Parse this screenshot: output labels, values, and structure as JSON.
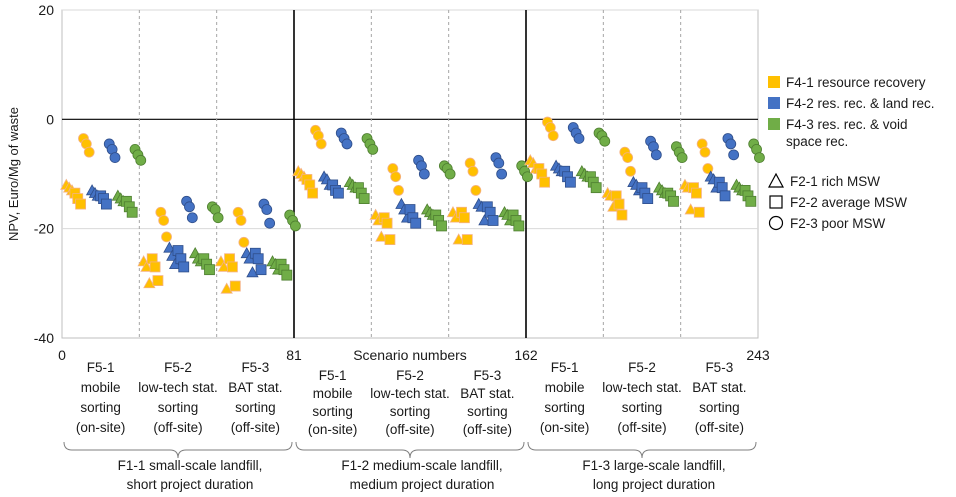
{
  "chart_data": {
    "type": "scatter",
    "ylabel": "NPV, Euro/Mg of waste",
    "xlabel": "Scenario numbers",
    "xlim": [
      0,
      243
    ],
    "ylim": [
      -40,
      20
    ],
    "y_ticks": [
      "20",
      "0",
      "-20",
      "-40"
    ],
    "x_ticks": [
      "0",
      "81",
      "162",
      "243"
    ],
    "grid": true,
    "legend_placement": "right",
    "f4_legend": [
      {
        "label": "F4-1 resource recovery",
        "color": "#FFC000"
      },
      {
        "label": "F4-2 res. rec. & land rec.",
        "color": "#4472C4"
      },
      {
        "label": "F4-3 res. rec. & void",
        "color": "#70AD47"
      },
      {
        "label": "space rec.",
        "color": "#70AD47"
      }
    ],
    "f2_legend": [
      {
        "label": "F2-1 rich MSW",
        "marker": "triangle"
      },
      {
        "label": "F2-2 average MSW",
        "marker": "square"
      },
      {
        "label": "F2-3 poor MSW",
        "marker": "circle"
      }
    ],
    "f5_groups": [
      [
        "F5-1",
        "mobile",
        "sorting",
        "(on-site)"
      ],
      [
        "F5-2",
        "low-tech stat.",
        "sorting",
        "(off-site)"
      ],
      [
        "F5-3",
        "BAT stat.",
        "sorting",
        "(off-site)"
      ]
    ],
    "f1_groups": [
      [
        "F1-1 small-scale landfill,",
        "short project duration"
      ],
      [
        "F1-2 medium-scale landfill,",
        "medium project duration"
      ],
      [
        "F1-3 large-scale landfill,",
        "long project duration"
      ]
    ],
    "series": [
      {
        "f1": 1,
        "f5": 1,
        "f4": 1,
        "f2": 1,
        "x_start": 1,
        "values": [
          -12,
          -12.5,
          -13
        ]
      },
      {
        "f1": 1,
        "f5": 1,
        "f4": 1,
        "f2": 2,
        "x_start": 4,
        "values": [
          -13.5,
          -14.5,
          -15.5
        ]
      },
      {
        "f1": 1,
        "f5": 1,
        "f4": 1,
        "f2": 3,
        "x_start": 7,
        "values": [
          -3.5,
          -4.5,
          -6
        ]
      },
      {
        "f1": 1,
        "f5": 1,
        "f4": 2,
        "f2": 1,
        "x_start": 10,
        "values": [
          -13,
          -13.5,
          -14
        ]
      },
      {
        "f1": 1,
        "f5": 1,
        "f4": 2,
        "f2": 2,
        "x_start": 13,
        "values": [
          -14,
          -14.5,
          -15.5
        ]
      },
      {
        "f1": 1,
        "f5": 1,
        "f4": 2,
        "f2": 3,
        "x_start": 16,
        "values": [
          -4.5,
          -5.5,
          -7
        ]
      },
      {
        "f1": 1,
        "f5": 1,
        "f4": 3,
        "f2": 1,
        "x_start": 19,
        "values": [
          -14,
          -14.5,
          -15
        ]
      },
      {
        "f1": 1,
        "f5": 1,
        "f4": 3,
        "f2": 2,
        "x_start": 22,
        "values": [
          -15,
          -16,
          -17
        ]
      },
      {
        "f1": 1,
        "f5": 1,
        "f4": 3,
        "f2": 3,
        "x_start": 25,
        "values": [
          -5.5,
          -6.5,
          -7.5
        ]
      },
      {
        "f1": 1,
        "f5": 2,
        "f4": 1,
        "f2": 1,
        "x_start": 28,
        "values": [
          -26,
          -27,
          -30
        ]
      },
      {
        "f1": 1,
        "f5": 2,
        "f4": 1,
        "f2": 2,
        "x_start": 31,
        "values": [
          -25.5,
          -27,
          -29.5
        ]
      },
      {
        "f1": 1,
        "f5": 2,
        "f4": 1,
        "f2": 3,
        "x_start": 34,
        "values": [
          -17,
          -18.5,
          -21.5
        ]
      },
      {
        "f1": 1,
        "f5": 2,
        "f4": 2,
        "f2": 1,
        "x_start": 37,
        "values": [
          -23.5,
          -25,
          -26.5
        ]
      },
      {
        "f1": 1,
        "f5": 2,
        "f4": 2,
        "f2": 2,
        "x_start": 40,
        "values": [
          -24,
          -25.5,
          -27
        ]
      },
      {
        "f1": 1,
        "f5": 2,
        "f4": 2,
        "f2": 3,
        "x_start": 43,
        "values": [
          -15,
          -16,
          -18
        ]
      },
      {
        "f1": 1,
        "f5": 2,
        "f4": 3,
        "f2": 1,
        "x_start": 46,
        "values": [
          -24.5,
          -25.5,
          -26
        ]
      },
      {
        "f1": 1,
        "f5": 2,
        "f4": 3,
        "f2": 2,
        "x_start": 49,
        "values": [
          -25.5,
          -26.5,
          -27.5
        ]
      },
      {
        "f1": 1,
        "f5": 2,
        "f4": 3,
        "f2": 3,
        "x_start": 52,
        "values": [
          -16,
          -16.5,
          -18
        ]
      },
      {
        "f1": 1,
        "f5": 3,
        "f4": 1,
        "f2": 1,
        "x_start": 55,
        "values": [
          -26,
          -27,
          -31
        ]
      },
      {
        "f1": 1,
        "f5": 3,
        "f4": 1,
        "f2": 2,
        "x_start": 58,
        "values": [
          -25.5,
          -27,
          -30.5
        ]
      },
      {
        "f1": 1,
        "f5": 3,
        "f4": 1,
        "f2": 3,
        "x_start": 61,
        "values": [
          -17,
          -18.5,
          -22.5
        ]
      },
      {
        "f1": 1,
        "f5": 3,
        "f4": 2,
        "f2": 1,
        "x_start": 64,
        "values": [
          -24.5,
          -25.5,
          -28
        ]
      },
      {
        "f1": 1,
        "f5": 3,
        "f4": 2,
        "f2": 2,
        "x_start": 67,
        "values": [
          -24.5,
          -25.5,
          -27.5
        ]
      },
      {
        "f1": 1,
        "f5": 3,
        "f4": 2,
        "f2": 3,
        "x_start": 70,
        "values": [
          -15.5,
          -16.5,
          -19
        ]
      },
      {
        "f1": 1,
        "f5": 3,
        "f4": 3,
        "f2": 1,
        "x_start": 73,
        "values": [
          -26,
          -26.5,
          -27.5
        ]
      },
      {
        "f1": 1,
        "f5": 3,
        "f4": 3,
        "f2": 2,
        "x_start": 76,
        "values": [
          -26.5,
          -27.5,
          -28.5
        ]
      },
      {
        "f1": 1,
        "f5": 3,
        "f4": 3,
        "f2": 3,
        "x_start": 79,
        "values": [
          -17.5,
          -18.5,
          -19.5
        ]
      },
      {
        "f1": 2,
        "f5": 1,
        "f4": 1,
        "f2": 1,
        "x_start": 82,
        "values": [
          -9.5,
          -10,
          -10.5
        ]
      },
      {
        "f1": 2,
        "f5": 1,
        "f4": 1,
        "f2": 2,
        "x_start": 85,
        "values": [
          -11,
          -12,
          -13.5
        ]
      },
      {
        "f1": 2,
        "f5": 1,
        "f4": 1,
        "f2": 3,
        "x_start": 88,
        "values": [
          -2,
          -3,
          -4.5
        ]
      },
      {
        "f1": 2,
        "f5": 1,
        "f4": 2,
        "f2": 1,
        "x_start": 91,
        "values": [
          -10.5,
          -11,
          -12
        ]
      },
      {
        "f1": 2,
        "f5": 1,
        "f4": 2,
        "f2": 2,
        "x_start": 94,
        "values": [
          -12,
          -13,
          -13.5
        ]
      },
      {
        "f1": 2,
        "f5": 1,
        "f4": 2,
        "f2": 3,
        "x_start": 97,
        "values": [
          -2.5,
          -3.5,
          -4.5
        ]
      },
      {
        "f1": 2,
        "f5": 1,
        "f4": 3,
        "f2": 1,
        "x_start": 100,
        "values": [
          -11.5,
          -12,
          -12.5
        ]
      },
      {
        "f1": 2,
        "f5": 1,
        "f4": 3,
        "f2": 2,
        "x_start": 103,
        "values": [
          -12.5,
          -13.5,
          -14.5
        ]
      },
      {
        "f1": 2,
        "f5": 1,
        "f4": 3,
        "f2": 3,
        "x_start": 106,
        "values": [
          -3.5,
          -4.5,
          -5.5
        ]
      },
      {
        "f1": 2,
        "f5": 2,
        "f4": 1,
        "f2": 1,
        "x_start": 109,
        "values": [
          -17.5,
          -18.5,
          -21.5
        ]
      },
      {
        "f1": 2,
        "f5": 2,
        "f4": 1,
        "f2": 2,
        "x_start": 112,
        "values": [
          -18,
          -19,
          -22
        ]
      },
      {
        "f1": 2,
        "f5": 2,
        "f4": 1,
        "f2": 3,
        "x_start": 115,
        "values": [
          -9,
          -10.5,
          -13
        ]
      },
      {
        "f1": 2,
        "f5": 2,
        "f4": 2,
        "f2": 1,
        "x_start": 118,
        "values": [
          -15.5,
          -16.5,
          -18
        ]
      },
      {
        "f1": 2,
        "f5": 2,
        "f4": 2,
        "f2": 2,
        "x_start": 121,
        "values": [
          -16.5,
          -18,
          -19
        ]
      },
      {
        "f1": 2,
        "f5": 2,
        "f4": 2,
        "f2": 3,
        "x_start": 124,
        "values": [
          -7.5,
          -8.5,
          -10
        ]
      },
      {
        "f1": 2,
        "f5": 2,
        "f4": 3,
        "f2": 1,
        "x_start": 127,
        "values": [
          -16.5,
          -17,
          -17.5
        ]
      },
      {
        "f1": 2,
        "f5": 2,
        "f4": 3,
        "f2": 2,
        "x_start": 130,
        "values": [
          -17.5,
          -18.5,
          -19.5
        ]
      },
      {
        "f1": 2,
        "f5": 2,
        "f4": 3,
        "f2": 3,
        "x_start": 133,
        "values": [
          -8.5,
          -9,
          -10
        ]
      },
      {
        "f1": 2,
        "f5": 3,
        "f4": 1,
        "f2": 1,
        "x_start": 136,
        "values": [
          -17,
          -18,
          -22
        ]
      },
      {
        "f1": 2,
        "f5": 3,
        "f4": 1,
        "f2": 2,
        "x_start": 139,
        "values": [
          -17,
          -18,
          -22
        ]
      },
      {
        "f1": 2,
        "f5": 3,
        "f4": 1,
        "f2": 3,
        "x_start": 142,
        "values": [
          -8,
          -9.5,
          -13
        ]
      },
      {
        "f1": 2,
        "f5": 3,
        "f4": 2,
        "f2": 1,
        "x_start": 145,
        "values": [
          -15.5,
          -16,
          -18.5
        ]
      },
      {
        "f1": 2,
        "f5": 3,
        "f4": 2,
        "f2": 2,
        "x_start": 148,
        "values": [
          -16,
          -17,
          -18.5
        ]
      },
      {
        "f1": 2,
        "f5": 3,
        "f4": 2,
        "f2": 3,
        "x_start": 151,
        "values": [
          -7,
          -8,
          -10
        ]
      },
      {
        "f1": 2,
        "f5": 3,
        "f4": 3,
        "f2": 1,
        "x_start": 154,
        "values": [
          -17,
          -17.5,
          -18.5
        ]
      },
      {
        "f1": 2,
        "f5": 3,
        "f4": 3,
        "f2": 2,
        "x_start": 157,
        "values": [
          -17.5,
          -18.5,
          -19.5
        ]
      },
      {
        "f1": 2,
        "f5": 3,
        "f4": 3,
        "f2": 3,
        "x_start": 160,
        "values": [
          -8.5,
          -9.5,
          -10.5
        ]
      },
      {
        "f1": 3,
        "f5": 1,
        "f4": 1,
        "f2": 1,
        "x_start": 163,
        "values": [
          -7.5,
          -8,
          -9
        ]
      },
      {
        "f1": 3,
        "f5": 1,
        "f4": 1,
        "f2": 2,
        "x_start": 166,
        "values": [
          -9,
          -10,
          -11.5
        ]
      },
      {
        "f1": 3,
        "f5": 1,
        "f4": 1,
        "f2": 3,
        "x_start": 169,
        "values": [
          -0.5,
          -1.5,
          -3
        ]
      },
      {
        "f1": 3,
        "f5": 1,
        "f4": 2,
        "f2": 1,
        "x_start": 172,
        "values": [
          -8.5,
          -9,
          -9.5
        ]
      },
      {
        "f1": 3,
        "f5": 1,
        "f4": 2,
        "f2": 2,
        "x_start": 175,
        "values": [
          -9.5,
          -10.5,
          -11.5
        ]
      },
      {
        "f1": 3,
        "f5": 1,
        "f4": 2,
        "f2": 3,
        "x_start": 178,
        "values": [
          -1.5,
          -2.5,
          -3.5
        ]
      },
      {
        "f1": 3,
        "f5": 1,
        "f4": 3,
        "f2": 1,
        "x_start": 181,
        "values": [
          -9.5,
          -10,
          -10.5
        ]
      },
      {
        "f1": 3,
        "f5": 1,
        "f4": 3,
        "f2": 2,
        "x_start": 184,
        "values": [
          -10.5,
          -11.5,
          -12.5
        ]
      },
      {
        "f1": 3,
        "f5": 1,
        "f4": 3,
        "f2": 3,
        "x_start": 187,
        "values": [
          -2.5,
          -3,
          -4
        ]
      },
      {
        "f1": 3,
        "f5": 2,
        "f4": 1,
        "f2": 1,
        "x_start": 190,
        "values": [
          -13.5,
          -14,
          -16
        ]
      },
      {
        "f1": 3,
        "f5": 2,
        "f4": 1,
        "f2": 2,
        "x_start": 193,
        "values": [
          -14,
          -15.5,
          -17.5
        ]
      },
      {
        "f1": 3,
        "f5": 2,
        "f4": 1,
        "f2": 3,
        "x_start": 196,
        "values": [
          -6,
          -7,
          -9.5
        ]
      },
      {
        "f1": 3,
        "f5": 2,
        "f4": 2,
        "f2": 1,
        "x_start": 199,
        "values": [
          -11.5,
          -12,
          -13
        ]
      },
      {
        "f1": 3,
        "f5": 2,
        "f4": 2,
        "f2": 2,
        "x_start": 202,
        "values": [
          -12.5,
          -13.5,
          -14.5
        ]
      },
      {
        "f1": 3,
        "f5": 2,
        "f4": 2,
        "f2": 3,
        "x_start": 205,
        "values": [
          -4,
          -5,
          -6.5
        ]
      },
      {
        "f1": 3,
        "f5": 2,
        "f4": 3,
        "f2": 1,
        "x_start": 208,
        "values": [
          -12.5,
          -13,
          -13.5
        ]
      },
      {
        "f1": 3,
        "f5": 2,
        "f4": 3,
        "f2": 2,
        "x_start": 211,
        "values": [
          -13.5,
          -14,
          -15
        ]
      },
      {
        "f1": 3,
        "f5": 2,
        "f4": 3,
        "f2": 3,
        "x_start": 214,
        "values": [
          -5,
          -6,
          -7
        ]
      },
      {
        "f1": 3,
        "f5": 3,
        "f4": 1,
        "f2": 1,
        "x_start": 217,
        "values": [
          -12,
          -12.5,
          -16.5
        ]
      },
      {
        "f1": 3,
        "f5": 3,
        "f4": 1,
        "f2": 2,
        "x_start": 220,
        "values": [
          -12.5,
          -13.5,
          -17
        ]
      },
      {
        "f1": 3,
        "f5": 3,
        "f4": 1,
        "f2": 3,
        "x_start": 223,
        "values": [
          -4.5,
          -6,
          -9
        ]
      },
      {
        "f1": 3,
        "f5": 3,
        "f4": 2,
        "f2": 1,
        "x_start": 226,
        "values": [
          -10.5,
          -11,
          -12.5
        ]
      },
      {
        "f1": 3,
        "f5": 3,
        "f4": 2,
        "f2": 2,
        "x_start": 229,
        "values": [
          -11.5,
          -12.5,
          -14
        ]
      },
      {
        "f1": 3,
        "f5": 3,
        "f4": 2,
        "f2": 3,
        "x_start": 232,
        "values": [
          -3.5,
          -4.5,
          -6.5
        ]
      },
      {
        "f1": 3,
        "f5": 3,
        "f4": 3,
        "f2": 1,
        "x_start": 235,
        "values": [
          -12,
          -12.5,
          -13
        ]
      },
      {
        "f1": 3,
        "f5": 3,
        "f4": 3,
        "f2": 2,
        "x_start": 238,
        "values": [
          -13,
          -14,
          -15
        ]
      },
      {
        "f1": 3,
        "f5": 3,
        "f4": 3,
        "f2": 3,
        "x_start": 241,
        "values": [
          -4.5,
          -5.5,
          -7
        ]
      }
    ]
  }
}
